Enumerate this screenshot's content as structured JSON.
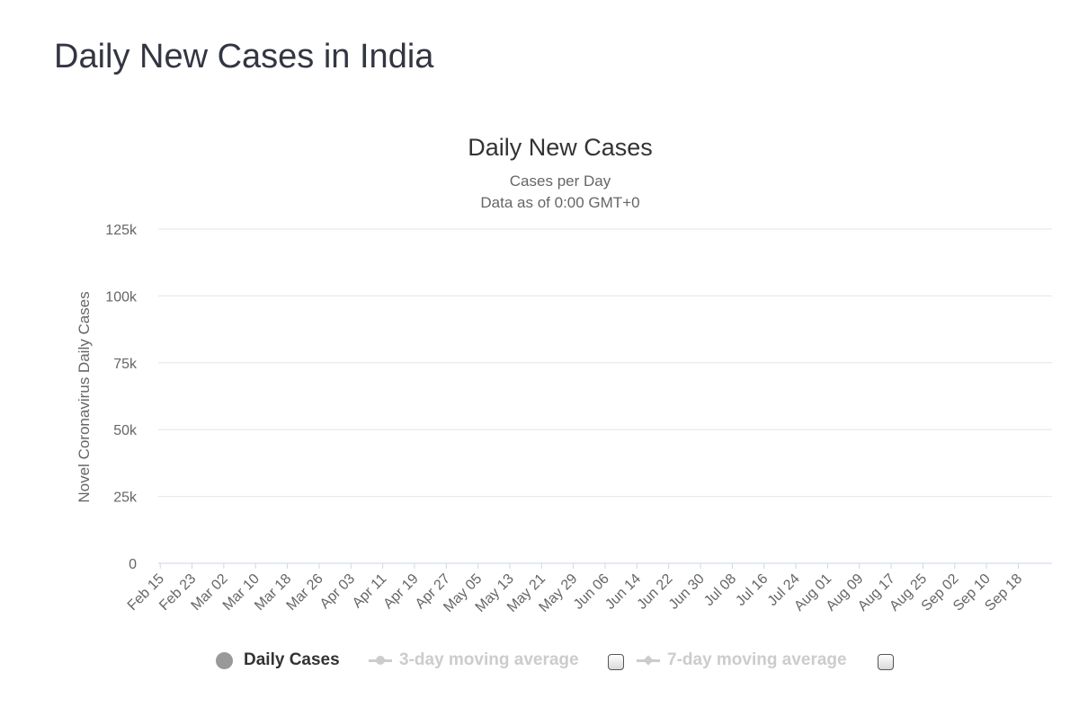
{
  "page": {
    "title": "Daily New Cases in India"
  },
  "chart_data": {
    "type": "bar",
    "title": "Daily New Cases",
    "subtitle_line1": "Cases per Day",
    "subtitle_line2": "Data as of 0:00 GMT+0",
    "xlabel": "",
    "ylabel": "Novel Coronavirus Daily Cases",
    "ylim": [
      0,
      125000
    ],
    "yticks": [
      0,
      25000,
      50000,
      75000,
      100000,
      125000
    ],
    "ytick_labels": [
      "0",
      "25k",
      "50k",
      "75k",
      "100k",
      "125k"
    ],
    "x_tick_labels": [
      "Feb 15",
      "Feb 23",
      "Mar 02",
      "Mar 10",
      "Mar 18",
      "Mar 26",
      "Apr 03",
      "Apr 11",
      "Apr 19",
      "Apr 27",
      "May 05",
      "May 13",
      "May 21",
      "May 29",
      "Jun 06",
      "Jun 14",
      "Jun 22",
      "Jun 30",
      "Jul 08",
      "Jul 16",
      "Jul 24",
      "Aug 01",
      "Aug 09",
      "Aug 17",
      "Aug 25",
      "Sep 02",
      "Sep 10",
      "Sep 18"
    ],
    "x_tick_every": 8,
    "series": [
      {
        "name": "Daily Cases",
        "color": "#999999",
        "values": [
          0,
          0,
          0,
          0,
          0,
          0,
          0,
          0,
          0,
          0,
          0,
          0,
          0,
          0,
          0,
          0,
          0,
          0,
          0,
          0,
          0,
          0,
          0,
          0,
          0,
          0,
          0,
          0,
          0,
          0,
          0,
          0,
          0,
          0,
          0,
          0,
          0,
          0,
          0,
          0,
          0,
          0,
          0,
          0,
          0,
          0,
          0,
          0,
          0,
          0,
          0,
          0,
          0,
          0,
          0,
          0,
          0,
          0,
          0,
          0,
          0,
          0,
          0,
          0,
          0,
          0,
          0,
          0,
          0,
          0,
          0,
          0,
          0,
          0,
          0,
          0,
          0,
          0,
          0,
          0,
          0,
          0,
          0,
          0,
          0,
          0,
          0,
          0,
          0,
          0,
          0,
          0,
          0,
          0,
          0,
          0,
          0,
          0,
          0,
          0,
          0,
          0,
          0,
          0,
          0,
          0,
          0,
          0,
          0,
          0,
          0,
          0,
          0,
          0,
          0,
          0,
          0,
          0,
          0,
          0,
          0,
          0,
          0,
          0,
          0,
          0,
          0,
          0,
          0,
          0,
          0,
          0,
          0,
          0,
          0,
          0,
          0,
          0,
          0,
          0,
          0,
          0,
          0,
          0,
          0,
          0,
          0,
          0,
          0,
          0,
          0,
          0,
          0,
          0,
          0,
          0,
          0,
          0,
          0,
          0,
          0,
          0,
          0,
          0,
          0,
          0,
          0,
          0,
          0,
          0,
          0,
          0,
          0,
          0,
          0,
          0,
          0,
          0,
          0,
          0,
          0,
          0,
          0,
          0,
          0,
          0,
          0,
          0,
          0,
          0,
          0,
          0,
          0,
          0,
          0,
          0,
          0,
          0,
          0,
          0,
          0,
          0,
          0,
          0,
          0,
          0,
          0,
          0,
          0,
          0,
          0,
          0,
          0,
          0,
          0,
          0,
          0,
          0,
          0,
          0,
          0,
          0,
          0,
          0,
          0
        ]
      }
    ]
  },
  "legend": {
    "items": [
      {
        "label": "Daily Cases",
        "active": true
      },
      {
        "label": "3-day moving average",
        "active": false
      },
      {
        "label": "7-day moving average",
        "active": false
      }
    ]
  }
}
